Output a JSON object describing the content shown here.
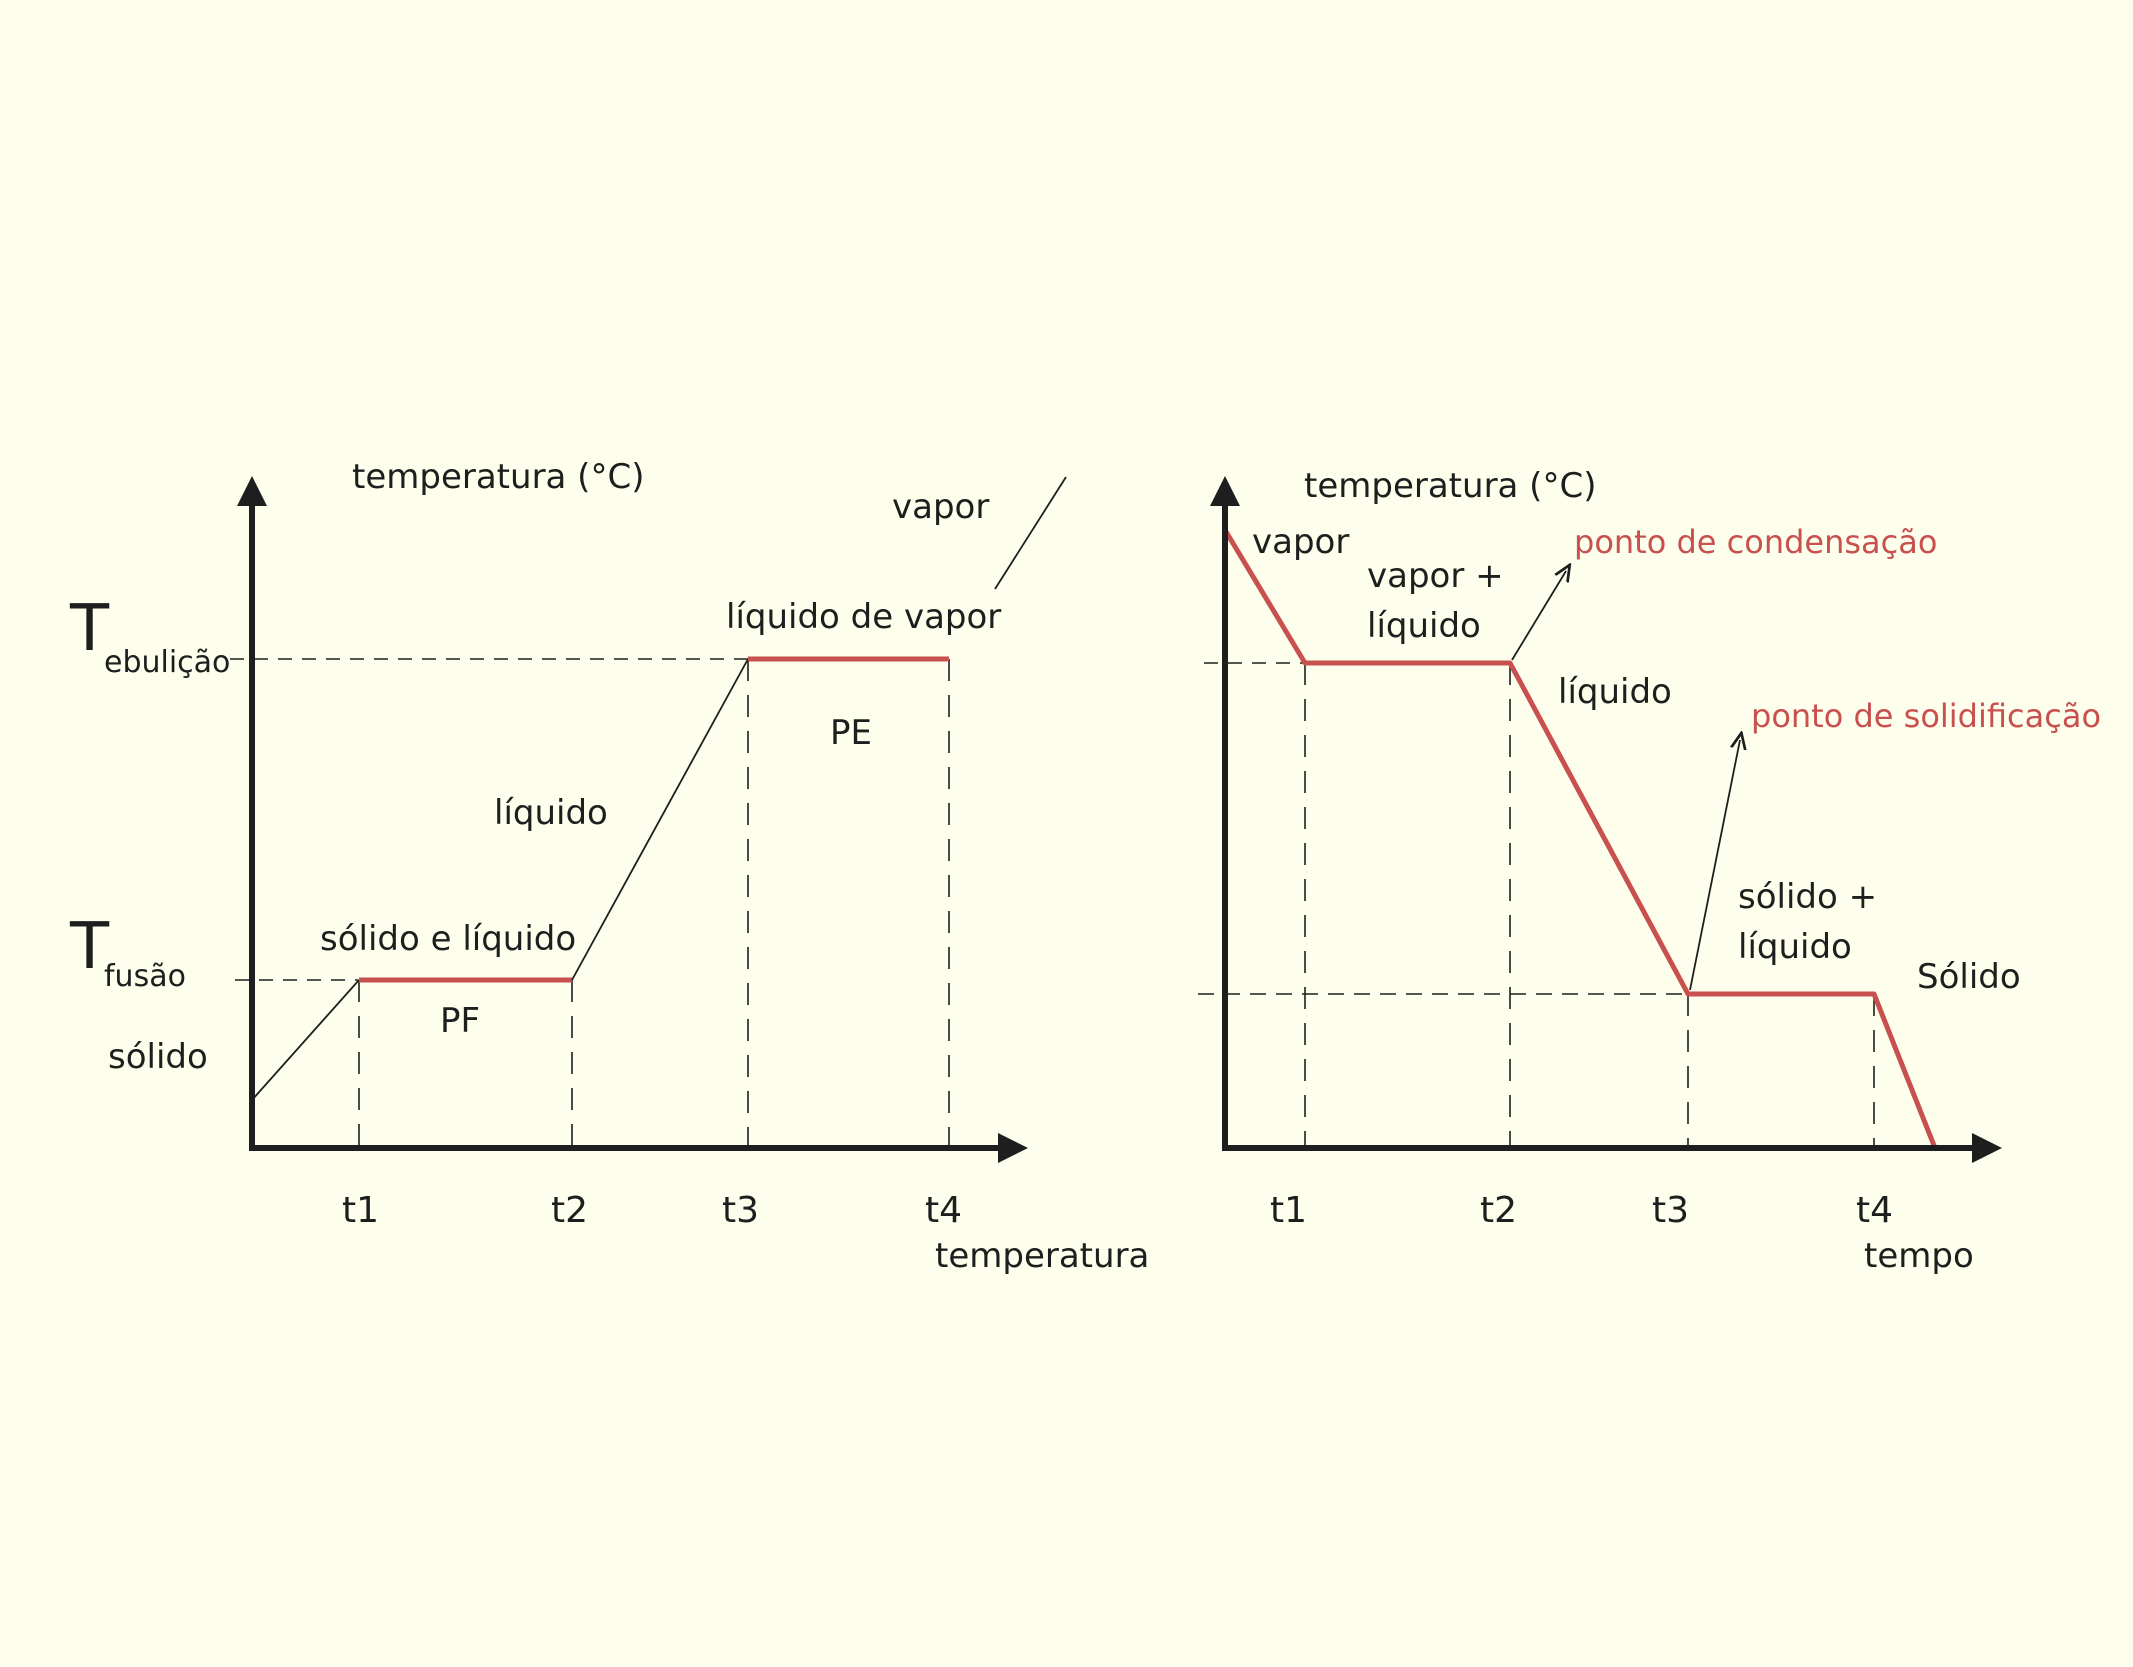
{
  "colors": {
    "background": "#fefeec",
    "ink": "#1e1e1e",
    "red": "#c8504f"
  },
  "chart_data": [
    {
      "type": "line",
      "ylabel": "temperatura (°C)",
      "xlabel": "temperatura",
      "x_ticks": [
        "t1",
        "t2",
        "t3",
        "t4"
      ],
      "y_marks": [
        {
          "name": "fusion",
          "big": "T",
          "sub": "fusão"
        },
        {
          "name": "boiling",
          "big": "T",
          "sub": "ebulição"
        }
      ],
      "segments": [
        {
          "from": [
            "origin",
            "low"
          ],
          "to": [
            "t1",
            "fusion"
          ],
          "style": "thin"
        },
        {
          "from": [
            "t1",
            "fusion"
          ],
          "to": [
            "t2",
            "fusion"
          ],
          "style": "red"
        },
        {
          "from": [
            "t2",
            "fusion"
          ],
          "to": [
            "t3",
            "boiling"
          ],
          "style": "thin"
        },
        {
          "from": [
            "t3",
            "boiling"
          ],
          "to": [
            "t4",
            "boiling"
          ],
          "style": "red"
        }
      ],
      "region_labels": {
        "solid": "sólido",
        "solid_liquid": "sólido e líquido",
        "pf": "PF",
        "liquid": "líquido",
        "liquid_vapor": "líquido de vapor",
        "pe": "PE",
        "vapor": "vapor"
      }
    },
    {
      "type": "line",
      "ylabel": "temperatura (°C)",
      "xlabel": "tempo",
      "x_ticks": [
        "t1",
        "t2",
        "t3",
        "t4"
      ],
      "segments": [
        {
          "from": [
            "start",
            "high"
          ],
          "to": [
            "t1",
            "condensation"
          ],
          "style": "red"
        },
        {
          "from": [
            "t1",
            "condensation"
          ],
          "to": [
            "t2",
            "condensation"
          ],
          "style": "red"
        },
        {
          "from": [
            "t2",
            "condensation"
          ],
          "to": [
            "t3",
            "solidification"
          ],
          "style": "red"
        },
        {
          "from": [
            "t3",
            "solidification"
          ],
          "to": [
            "t4",
            "solidification"
          ],
          "style": "red"
        },
        {
          "from": [
            "t4",
            "solidification"
          ],
          "to": [
            "end",
            "low"
          ],
          "style": "red"
        }
      ],
      "region_labels": {
        "vapor": "vapor",
        "vapor_liquid_1": "vapor +",
        "vapor_liquid_2": "líquido",
        "liquid": "líquido",
        "solid_liquid_1": "sólido +",
        "solid_liquid_2": "líquido",
        "solid": "Sólido"
      },
      "annotations": {
        "condensation": "ponto de condensação",
        "solidification": "ponto de solidificação"
      }
    }
  ]
}
